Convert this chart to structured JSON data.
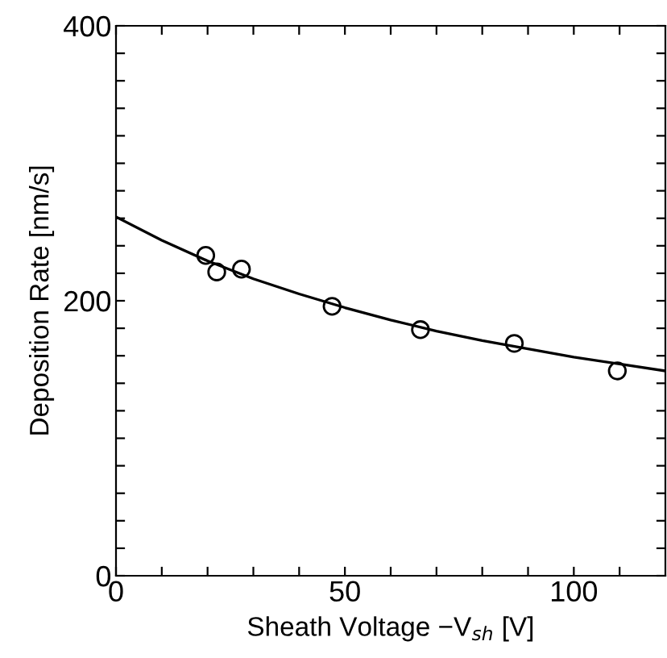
{
  "chart_data": {
    "type": "scatter",
    "xlabel": "Sheath Voltage −V$_{sh}$ [V]",
    "ylabel": "Deposition Rate [nm/s]",
    "xlim": [
      0,
      120
    ],
    "ylim": [
      0,
      400
    ],
    "xticks": [
      0,
      {
        "value": 10,
        "label": null
      },
      {
        "value": 20,
        "label": null
      },
      {
        "value": 30,
        "label": null
      },
      {
        "value": 40,
        "label": null
      },
      50,
      {
        "value": 60,
        "label": null
      },
      {
        "value": 70,
        "label": null
      },
      {
        "value": 80,
        "label": null
      },
      {
        "value": 90,
        "label": null
      },
      100,
      {
        "value": 110,
        "label": null
      }
    ],
    "yticks": [
      0,
      {
        "value": 20,
        "label": null
      },
      {
        "value": 40,
        "label": null
      },
      {
        "value": 60,
        "label": null
      },
      {
        "value": 80,
        "label": null
      },
      {
        "value": 100,
        "label": null
      },
      {
        "value": 120,
        "label": null
      },
      {
        "value": 140,
        "label": null
      },
      {
        "value": 160,
        "label": null
      },
      {
        "value": 180,
        "label": null
      },
      200,
      {
        "value": 220,
        "label": null
      },
      {
        "value": 240,
        "label": null
      },
      {
        "value": 260,
        "label": null
      },
      {
        "value": 280,
        "label": null
      },
      {
        "value": 300,
        "label": null
      },
      {
        "value": 320,
        "label": null
      },
      {
        "value": 340,
        "label": null
      },
      {
        "value": 360,
        "label": null
      },
      {
        "value": 380,
        "label": null
      },
      400
    ],
    "grid": false,
    "series": [
      {
        "marker": "circle",
        "color": "#000000",
        "x": [
          19.6,
          22,
          27.4,
          47.2,
          66.5,
          87,
          109.5
        ],
        "values": [
          233,
          221,
          223,
          196,
          179,
          169,
          149
        ]
      },
      {
        "type": "line",
        "color": "#000000",
        "x": [
          0,
          10,
          20,
          30,
          40,
          50,
          60,
          70,
          80,
          90,
          100,
          110,
          120
        ],
        "values": [
          261,
          244,
          229,
          216,
          205,
          195,
          186,
          178,
          171,
          165,
          159,
          154,
          149
        ]
      }
    ]
  }
}
